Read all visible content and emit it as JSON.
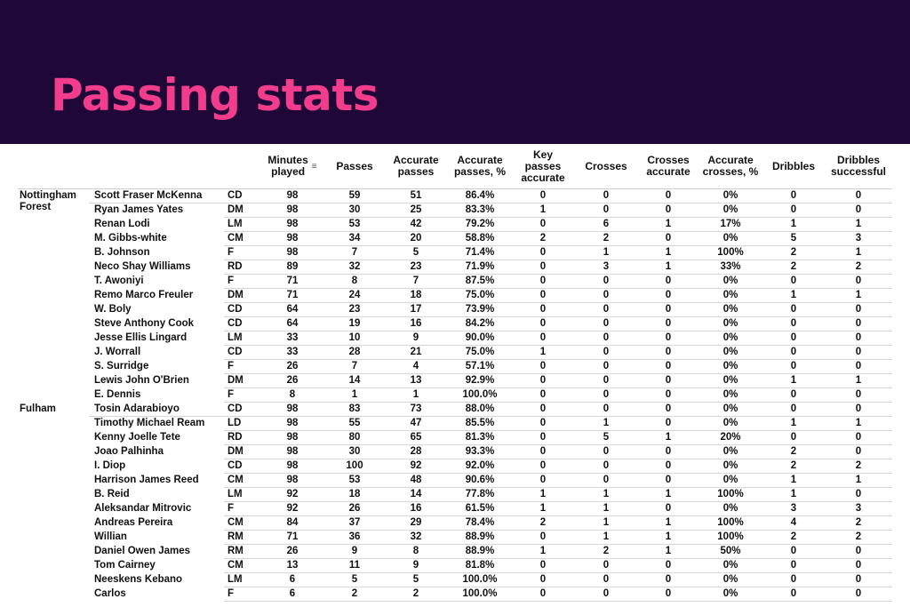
{
  "title": "Passing stats",
  "columns": {
    "minutes": [
      "Minutes",
      "played"
    ],
    "passes": "Passes",
    "accurate_passes": [
      "Accurate",
      "passes"
    ],
    "accurate_passes_pct": [
      "Accurate",
      "passes, %"
    ],
    "key_passes": [
      "Key",
      "passes",
      "accurate"
    ],
    "crosses": "Crosses",
    "crosses_accurate": [
      "Crosses",
      "accurate"
    ],
    "accurate_crosses_pct": [
      "Accurate",
      "crosses, %"
    ],
    "dribbles": "Dribbles",
    "dribbles_successful": [
      "Dribbles",
      "successful"
    ]
  },
  "teams": [
    {
      "name": "Nottingham Forest",
      "rows": [
        [
          "Scott Fraser McKenna",
          "CD",
          "98",
          "59",
          "51",
          "86.4%",
          "0",
          "0",
          "0",
          "0%",
          "0",
          "0"
        ],
        [
          "Ryan James Yates",
          "DM",
          "98",
          "30",
          "25",
          "83.3%",
          "1",
          "0",
          "0",
          "0%",
          "0",
          "0"
        ],
        [
          "Renan Lodi",
          "LM",
          "98",
          "53",
          "42",
          "79.2%",
          "0",
          "6",
          "1",
          "17%",
          "1",
          "1"
        ],
        [
          "M. Gibbs-white",
          "CM",
          "98",
          "34",
          "20",
          "58.8%",
          "2",
          "2",
          "0",
          "0%",
          "5",
          "3"
        ],
        [
          "B. Johnson",
          "F",
          "98",
          "7",
          "5",
          "71.4%",
          "0",
          "1",
          "1",
          "100%",
          "2",
          "1"
        ],
        [
          "Neco Shay Williams",
          "RD",
          "89",
          "32",
          "23",
          "71.9%",
          "0",
          "3",
          "1",
          "33%",
          "2",
          "2"
        ],
        [
          "T. Awoniyi",
          "F",
          "71",
          "8",
          "7",
          "87.5%",
          "0",
          "0",
          "0",
          "0%",
          "0",
          "0"
        ],
        [
          "Remo Marco Freuler",
          "DM",
          "71",
          "24",
          "18",
          "75.0%",
          "0",
          "0",
          "0",
          "0%",
          "1",
          "1"
        ],
        [
          "W. Boly",
          "CD",
          "64",
          "23",
          "17",
          "73.9%",
          "0",
          "0",
          "0",
          "0%",
          "0",
          "0"
        ],
        [
          "Steve Anthony Cook",
          "CD",
          "64",
          "19",
          "16",
          "84.2%",
          "0",
          "0",
          "0",
          "0%",
          "0",
          "0"
        ],
        [
          "Jesse Ellis Lingard",
          "LM",
          "33",
          "10",
          "9",
          "90.0%",
          "0",
          "0",
          "0",
          "0%",
          "0",
          "0"
        ],
        [
          "J. Worrall",
          "CD",
          "33",
          "28",
          "21",
          "75.0%",
          "1",
          "0",
          "0",
          "0%",
          "0",
          "0"
        ],
        [
          "S. Surridge",
          "F",
          "26",
          "7",
          "4",
          "57.1%",
          "0",
          "0",
          "0",
          "0%",
          "0",
          "0"
        ],
        [
          "Lewis John O'Brien",
          "DM",
          "26",
          "14",
          "13",
          "92.9%",
          "0",
          "0",
          "0",
          "0%",
          "1",
          "1"
        ],
        [
          "E. Dennis",
          "F",
          "8",
          "1",
          "1",
          "100.0%",
          "0",
          "0",
          "0",
          "0%",
          "0",
          "0"
        ]
      ]
    },
    {
      "name": "Fulham",
      "rows": [
        [
          "Tosin Adarabioyo",
          "CD",
          "98",
          "83",
          "73",
          "88.0%",
          "0",
          "0",
          "0",
          "0%",
          "0",
          "0"
        ],
        [
          "Timothy Michael Ream",
          "LD",
          "98",
          "55",
          "47",
          "85.5%",
          "0",
          "1",
          "0",
          "0%",
          "1",
          "1"
        ],
        [
          "Kenny Joelle Tete",
          "RD",
          "98",
          "80",
          "65",
          "81.3%",
          "0",
          "5",
          "1",
          "20%",
          "0",
          "0"
        ],
        [
          "Joao Palhinha",
          "DM",
          "98",
          "30",
          "28",
          "93.3%",
          "0",
          "0",
          "0",
          "0%",
          "2",
          "0"
        ],
        [
          "I. Diop",
          "CD",
          "98",
          "100",
          "92",
          "92.0%",
          "0",
          "0",
          "0",
          "0%",
          "2",
          "2"
        ],
        [
          "Harrison James Reed",
          "CM",
          "98",
          "53",
          "48",
          "90.6%",
          "0",
          "0",
          "0",
          "0%",
          "1",
          "1"
        ],
        [
          "B. Reid",
          "LM",
          "92",
          "18",
          "14",
          "77.8%",
          "1",
          "1",
          "1",
          "100%",
          "1",
          "0"
        ],
        [
          "Aleksandar Mitrovic",
          "F",
          "92",
          "26",
          "16",
          "61.5%",
          "1",
          "1",
          "0",
          "0%",
          "3",
          "3"
        ],
        [
          "Andreas Pereira",
          "CM",
          "84",
          "37",
          "29",
          "78.4%",
          "2",
          "1",
          "1",
          "100%",
          "4",
          "2"
        ],
        [
          "Willian",
          "RM",
          "71",
          "36",
          "32",
          "88.9%",
          "0",
          "1",
          "1",
          "100%",
          "2",
          "2"
        ],
        [
          "Daniel Owen James",
          "RM",
          "26",
          "9",
          "8",
          "88.9%",
          "1",
          "2",
          "1",
          "50%",
          "0",
          "0"
        ],
        [
          "Tom Cairney",
          "CM",
          "13",
          "11",
          "9",
          "81.8%",
          "0",
          "0",
          "0",
          "0%",
          "0",
          "0"
        ],
        [
          "Neeskens Kebano",
          "LM",
          "6",
          "5",
          "5",
          "100.0%",
          "0",
          "0",
          "0",
          "0%",
          "0",
          "0"
        ],
        [
          "Carlos",
          "F",
          "6",
          "2",
          "2",
          "100.0%",
          "0",
          "0",
          "0",
          "0%",
          "0",
          "0"
        ]
      ]
    }
  ],
  "icons": {
    "sort": "sort-descending-icon"
  },
  "colors": {
    "banner_bg": "#1f0838",
    "title": "#f23d8c"
  }
}
